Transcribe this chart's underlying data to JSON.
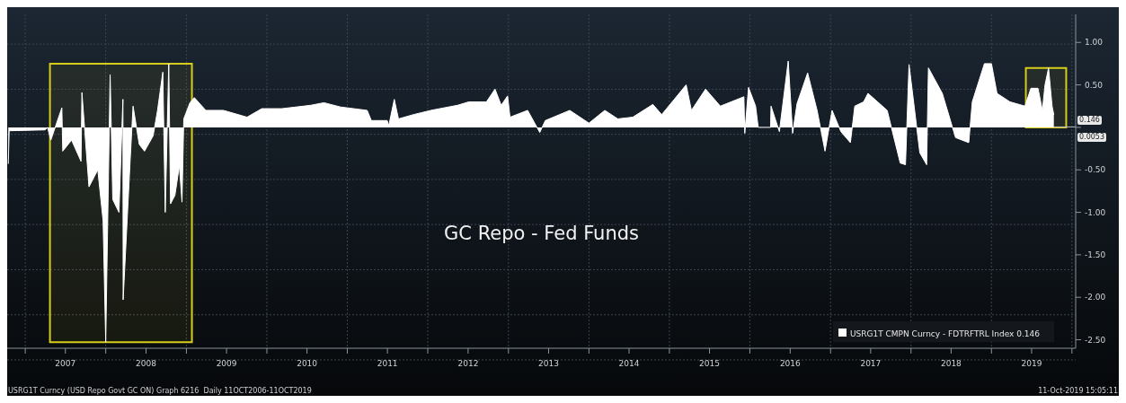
{
  "chart_data": {
    "type": "area",
    "title": "GC Repo - Fed Funds",
    "x": [
      "2006-10-16",
      "2006-10-20",
      "2007-04-01",
      "2007-04-12",
      "2007-04-27",
      "2007-06-16",
      "2007-06-20",
      "2007-07-30",
      "2007-09-11",
      "2007-09-15",
      "2007-10-17",
      "2007-11-26",
      "2007-12-20",
      "2008-01-01",
      "2008-01-21",
      "2008-02-02",
      "2008-03-01",
      "2008-03-19",
      "2008-03-20",
      "2008-04-21",
      "2008-05-04",
      "2008-06-01",
      "2008-06-25",
      "2008-08-03",
      "2008-08-23",
      "2008-09-16",
      "2008-09-27",
      "2008-10-13",
      "2008-10-21",
      "2008-11-10",
      "2008-11-30",
      "2008-12-12",
      "2008-12-20",
      "2009-01-17",
      "2009-02-06",
      "2009-03-30",
      "2009-06-18",
      "2009-10-03",
      "2009-12-09",
      "2010-03-10",
      "2010-07-19",
      "2010-09-17",
      "2010-12-01",
      "2011-04-01",
      "2011-04-20",
      "2011-07-01",
      "2011-07-08",
      "2011-08-02",
      "2011-08-21",
      "2011-10-28",
      "2012-01-15",
      "2012-05-15",
      "2012-07-05",
      "2012-09-23",
      "2012-11-01",
      "2012-11-29",
      "2012-12-28",
      "2013-01-08",
      "2013-03-29",
      "2013-05-23",
      "2013-06-17",
      "2013-10-06",
      "2014-01-01",
      "2014-03-14",
      "2014-05-12",
      "2014-07-19",
      "2014-10-18",
      "2014-11-27",
      "2015-03-18",
      "2015-04-11",
      "2015-06-14",
      "2015-08-20",
      "2015-12-05",
      "2015-12-09",
      "2015-12-26",
      "2016-01-27",
      "2016-02-08",
      "2016-04-04",
      "2016-04-06",
      "2016-05-14",
      "2016-06-23",
      "2016-07-13",
      "2016-08-02",
      "2016-09-19",
      "2016-11-01",
      "2016-12-07",
      "2017-01-08",
      "2017-02-17",
      "2017-04-01",
      "2017-04-21",
      "2017-05-31",
      "2017-06-20",
      "2017-09-15",
      "2017-11-13",
      "2017-12-07",
      "2017-12-23",
      "2018-02-10",
      "2018-03-13",
      "2018-03-21",
      "2018-05-23",
      "2018-07-22",
      "2018-09-20",
      "2018-10-06",
      "2018-11-30",
      "2019-01-01",
      "2019-01-26",
      "2019-03-26",
      "2019-06-02",
      "2019-06-29",
      "2019-07-31",
      "2019-08-20",
      "2019-09-01",
      "2019-09-17",
      "2019-10-03",
      "2019-10-11"
    ],
    "series": [
      {
        "name": "USRG1T CMPN Curncy - FDTRFTRL Index 0.146",
        "color": "#ffffff",
        "values": [
          -0.43,
          -0.04,
          -0.03,
          0.0,
          -0.15,
          0.23,
          -0.28,
          -0.15,
          -0.4,
          0.41,
          -0.7,
          -0.5,
          -1.1,
          -2.53,
          0.62,
          -0.85,
          -1.0,
          0.33,
          -2.03,
          -0.38,
          0.25,
          -0.2,
          -0.28,
          -0.1,
          0.2,
          0.65,
          -1.0,
          0.75,
          -0.9,
          -0.8,
          -0.45,
          -0.88,
          0.1,
          0.29,
          0.35,
          0.2,
          0.2,
          0.12,
          0.22,
          0.22,
          0.26,
          0.29,
          0.24,
          0.2,
          0.08,
          0.08,
          0.02,
          0.33,
          0.1,
          0.15,
          0.2,
          0.26,
          0.3,
          0.3,
          0.45,
          0.26,
          0.37,
          0.12,
          0.2,
          -0.06,
          0.08,
          0.2,
          0.05,
          0.2,
          0.1,
          0.12,
          0.27,
          0.15,
          0.5,
          0.2,
          0.45,
          0.25,
          0.36,
          -0.07,
          0.47,
          0.25,
          0.0,
          0.0,
          0.25,
          -0.05,
          0.78,
          -0.07,
          0.28,
          0.64,
          0.2,
          -0.28,
          0.2,
          -0.05,
          -0.18,
          0.25,
          0.3,
          0.4,
          0.2,
          -0.42,
          -0.44,
          0.74,
          -0.3,
          -0.44,
          0.7,
          0.4,
          -0.12,
          -0.18,
          0.3,
          0.75,
          0.75,
          0.4,
          0.3,
          0.25,
          0.46,
          0.46,
          0.2,
          0.5,
          0.7,
          0.25,
          0.146
        ]
      }
    ],
    "xlim": [
      "2006-10-11",
      "2020-01-18"
    ],
    "xticks": [
      {
        "value": "2007-01-01",
        "label": null
      },
      {
        "value": "2007-07-02",
        "label": "2007"
      },
      {
        "value": "2008-01-01",
        "label": null
      },
      {
        "value": "2008-07-02",
        "label": "2008"
      },
      {
        "value": "2009-01-01",
        "label": null
      },
      {
        "value": "2009-07-02",
        "label": "2009"
      },
      {
        "value": "2010-01-01",
        "label": null
      },
      {
        "value": "2010-07-02",
        "label": "2010"
      },
      {
        "value": "2011-01-01",
        "label": null
      },
      {
        "value": "2011-07-02",
        "label": "2011"
      },
      {
        "value": "2012-01-01",
        "label": null
      },
      {
        "value": "2012-07-02",
        "label": "2012"
      },
      {
        "value": "2013-01-01",
        "label": null
      },
      {
        "value": "2013-07-02",
        "label": "2013"
      },
      {
        "value": "2014-01-01",
        "label": null
      },
      {
        "value": "2014-07-02",
        "label": "2014"
      },
      {
        "value": "2015-01-01",
        "label": null
      },
      {
        "value": "2015-07-02",
        "label": "2015"
      },
      {
        "value": "2016-01-01",
        "label": null
      },
      {
        "value": "2016-07-02",
        "label": "2016"
      },
      {
        "value": "2017-01-01",
        "label": null
      },
      {
        "value": "2017-07-02",
        "label": "2017"
      },
      {
        "value": "2018-01-01",
        "label": null
      },
      {
        "value": "2018-07-02",
        "label": "2018"
      },
      {
        "value": "2019-01-01",
        "label": null
      },
      {
        "value": "2019-07-02",
        "label": "2019"
      },
      {
        "value": "2020-01-01",
        "label": null
      }
    ],
    "ylim": [
      -2.6,
      1.33
    ],
    "yticks": [
      {
        "value": 1,
        "label": "1.00"
      },
      {
        "value": 0.5,
        "label": "0.50"
      },
      {
        "value": 0,
        "label": null
      },
      {
        "value": -0.5,
        "label": "-0.50"
      },
      {
        "value": -1,
        "label": "-1.00"
      },
      {
        "value": -1.5,
        "label": "-1.50"
      },
      {
        "value": -2,
        "label": "-2.00"
      },
      {
        "value": -2.5,
        "label": "-2.50"
      }
    ],
    "grid": true,
    "legend": "bottom right",
    "ref_lines": [
      {
        "axis": "y",
        "value": 0.0053,
        "label": "0.0053",
        "color": "#bbbbbb"
      }
    ],
    "bands": [
      {
        "axis": "x",
        "from": "2007-04-23",
        "to": "2009-01-26",
        "color": "#d6cc1a"
      },
      {
        "axis": "x",
        "from": "2019-06-06",
        "to": "2019-12-06",
        "color": "#d6cc1a"
      }
    ],
    "annotations": [
      "USRG1T Curncy (USD Repo Govt GC ON) Graph 6216  Daily 11OCT2006-11OCT2019",
      "11-Oct-2019 15:05:11",
      "0.146"
    ]
  }
}
